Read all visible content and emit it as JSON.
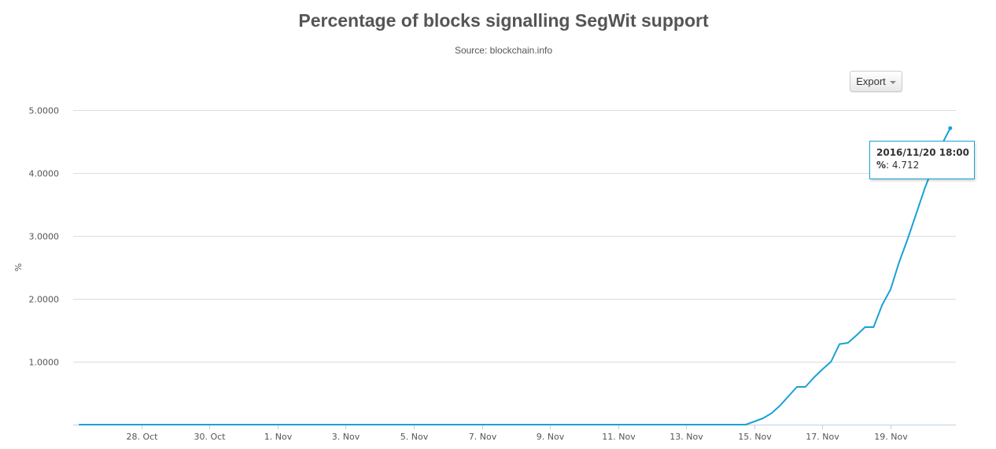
{
  "header": {
    "title": "Percentage of blocks signalling SegWit support",
    "subtitle": "Source: blockchain.info"
  },
  "toolbar": {
    "export_label": "Export",
    "export_icon": "caret-down-icon"
  },
  "tooltip": {
    "date": "2016/11/20 18:00",
    "series": "%",
    "value": "4.712"
  },
  "colors": {
    "line": "#1aa1d6",
    "grid": "#dddddd",
    "axis": "#c0d0e0",
    "text": "#555555"
  },
  "chart_data": {
    "type": "line",
    "title": "Percentage of blocks signalling SegWit support",
    "subtitle": "Source: blockchain.info",
    "xlabel": "",
    "ylabel": "%",
    "ylim": [
      0,
      5
    ],
    "xlim": [
      "2016-10-26 00:00",
      "2016-11-20 22:00"
    ],
    "grid": true,
    "legend": "none",
    "y_ticks": [
      {
        "value": 1,
        "label": "1.0000"
      },
      {
        "value": 2,
        "label": "2.0000"
      },
      {
        "value": 3,
        "label": "3.0000"
      },
      {
        "value": 4,
        "label": "4.0000"
      },
      {
        "value": 5,
        "label": "5.0000"
      }
    ],
    "x_ticks": [
      {
        "date": "2016-10-28",
        "label": "28. Oct"
      },
      {
        "date": "2016-10-30",
        "label": "30. Oct"
      },
      {
        "date": "2016-11-01",
        "label": "1. Nov"
      },
      {
        "date": "2016-11-03",
        "label": "3. Nov"
      },
      {
        "date": "2016-11-05",
        "label": "5. Nov"
      },
      {
        "date": "2016-11-07",
        "label": "7. Nov"
      },
      {
        "date": "2016-11-09",
        "label": "9. Nov"
      },
      {
        "date": "2016-11-11",
        "label": "11. Nov"
      },
      {
        "date": "2016-11-13",
        "label": "13. Nov"
      },
      {
        "date": "2016-11-15",
        "label": "15. Nov"
      },
      {
        "date": "2016-11-17",
        "label": "17. Nov"
      },
      {
        "date": "2016-11-19",
        "label": "19. Nov"
      }
    ],
    "series": [
      {
        "values": [
          [
            "2016-10-26 04:00",
            0.0
          ],
          [
            "2016-11-14 18:00",
            0.0
          ],
          [
            "2016-11-15 00:00",
            0.05
          ],
          [
            "2016-11-15 06:00",
            0.1
          ],
          [
            "2016-11-15 12:00",
            0.18
          ],
          [
            "2016-11-15 18:00",
            0.3
          ],
          [
            "2016-11-16 00:00",
            0.45
          ],
          [
            "2016-11-16 06:00",
            0.6
          ],
          [
            "2016-11-16 12:00",
            0.6
          ],
          [
            "2016-11-16 18:00",
            0.75
          ],
          [
            "2016-11-17 00:00",
            0.88
          ],
          [
            "2016-11-17 06:00",
            1.0
          ],
          [
            "2016-11-17 12:00",
            1.28
          ],
          [
            "2016-11-17 18:00",
            1.3
          ],
          [
            "2016-11-18 00:00",
            1.42
          ],
          [
            "2016-11-18 06:00",
            1.55
          ],
          [
            "2016-11-18 12:00",
            1.55
          ],
          [
            "2016-11-18 18:00",
            1.9
          ],
          [
            "2016-11-19 00:00",
            2.15
          ],
          [
            "2016-11-19 06:00",
            2.58
          ],
          [
            "2016-11-19 12:00",
            2.95
          ],
          [
            "2016-11-19 18:00",
            3.35
          ],
          [
            "2016-11-20 00:00",
            3.75
          ],
          [
            "2016-11-20 06:00",
            4.1
          ],
          [
            "2016-11-20 12:00",
            4.45
          ],
          [
            "2016-11-20 18:00",
            4.712
          ]
        ]
      }
    ]
  }
}
